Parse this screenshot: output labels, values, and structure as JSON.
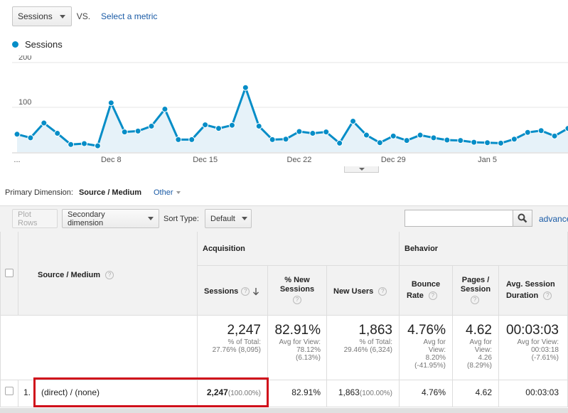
{
  "top": {
    "metric": "Sessions",
    "vs": "VS.",
    "select_metric": "Select a metric"
  },
  "legend": {
    "label": "Sessions",
    "color": "#058dc7"
  },
  "chart_data": {
    "type": "area",
    "series": [
      {
        "name": "Sessions",
        "values": [
          40,
          32,
          65,
          42,
          17,
          19,
          14,
          110,
          45,
          47,
          58,
          96,
          28,
          28,
          61,
          53,
          60,
          144,
          58,
          28,
          29,
          46,
          42,
          45,
          20,
          69,
          38,
          21,
          36,
          26,
          38,
          32,
          27,
          26,
          22,
          21,
          20,
          29,
          44,
          48,
          36,
          53
        ]
      }
    ],
    "x_ticks": [
      {
        "label": "...",
        "index": 0
      },
      {
        "label": "Dec 8",
        "index": 7
      },
      {
        "label": "Dec 15",
        "index": 14
      },
      {
        "label": "Dec 22",
        "index": 21
      },
      {
        "label": "Dec 29",
        "index": 28
      },
      {
        "label": "Jan 5",
        "index": 35
      }
    ],
    "y_ticks": [
      100,
      200
    ],
    "ylim": [
      0,
      200
    ],
    "grid": true
  },
  "primary_dimension": {
    "label": "Primary Dimension:",
    "active": "Source / Medium",
    "other": "Other"
  },
  "toolbar": {
    "plot_rows": "Plot Rows",
    "secondary_dimension": "Secondary dimension",
    "sort_type_label": "Sort Type:",
    "sort_type_value": "Default",
    "advanced": "advanced"
  },
  "table": {
    "dimension_header": "Source / Medium",
    "groups": {
      "acquisition": "Acquisition",
      "behavior": "Behavior"
    },
    "columns": {
      "sessions": "Sessions",
      "pct_new_sessions": "% New Sessions",
      "new_users": "New Users",
      "bounce_rate_1": "Bounce",
      "bounce_rate_2": "Rate",
      "pages_session": "Pages / Session",
      "avg_session_1": "Avg. Session",
      "avg_session_2": "Duration"
    },
    "totals": {
      "sessions": "2,247",
      "sessions_sub1": "% of Total:",
      "sessions_sub2": "27.76% (8,095)",
      "pct_new": "82.91%",
      "pct_new_sub1": "Avg for View:",
      "pct_new_sub2": "78.12%",
      "pct_new_sub3": "(6.13%)",
      "new_users": "1,863",
      "new_users_sub1": "% of Total:",
      "new_users_sub2": "29.46% (6,324)",
      "bounce": "4.76%",
      "bounce_sub1": "Avg for",
      "bounce_sub2": "View:",
      "bounce_sub3": "8.20%",
      "bounce_sub4": "(-41.95%)",
      "pages": "4.62",
      "pages_sub1": "Avg for",
      "pages_sub2": "View:",
      "pages_sub3": "4.26",
      "pages_sub4": "(8.29%)",
      "duration": "00:03:03",
      "duration_sub1": "Avg for View:",
      "duration_sub2": "00:03:18",
      "duration_sub3": "(-7.61%)"
    },
    "rows": [
      {
        "index": "1.",
        "dimension": "(direct) / (none)",
        "sessions": "2,247",
        "sessions_pct": "(100.00%)",
        "pct_new": "82.91%",
        "new_users": "1,863",
        "new_users_pct": "(100.00%)",
        "bounce": "4.76%",
        "pages": "4.62",
        "duration": "00:03:03"
      }
    ]
  }
}
